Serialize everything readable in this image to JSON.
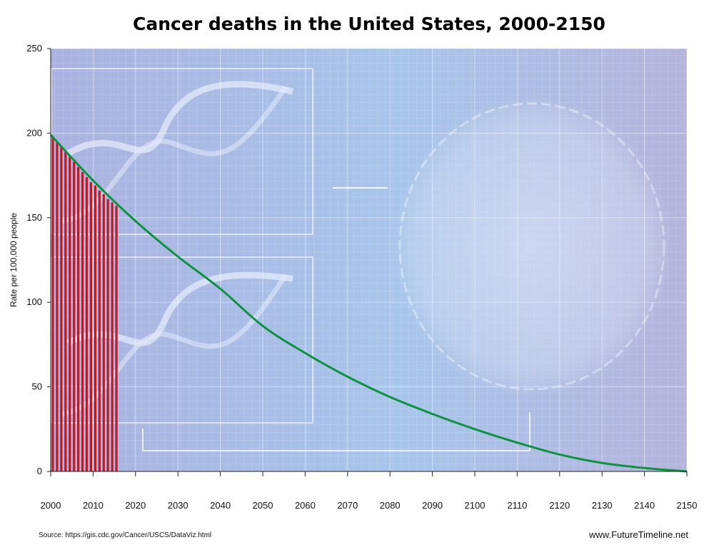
{
  "chart_data": {
    "type": "bar",
    "title": "Cancer deaths in the United States, 2000-2150",
    "xlabel": "",
    "ylabel": "Rate per 100,000 people",
    "xlim": [
      2000,
      2150
    ],
    "ylim": [
      0,
      250
    ],
    "x_ticks": [
      "2000",
      "2010",
      "2020",
      "2030",
      "2040",
      "2050",
      "2060",
      "2070",
      "2080",
      "2090",
      "2100",
      "2110",
      "2120",
      "2130",
      "2140",
      "2150"
    ],
    "y_ticks": [
      "0",
      "50",
      "100",
      "150",
      "200",
      "250"
    ],
    "grid": true,
    "bars": {
      "x": [
        2000,
        2001,
        2002,
        2003,
        2004,
        2005,
        2006,
        2007,
        2008,
        2009,
        2010,
        2011,
        2012,
        2013,
        2014,
        2015
      ],
      "values": [
        198,
        195,
        192,
        189,
        186,
        183,
        180,
        177,
        174,
        171,
        169,
        166,
        164,
        161,
        159,
        157
      ],
      "color": "#b41f2e"
    },
    "trend": {
      "x": [
        2000,
        2010,
        2020,
        2030,
        2040,
        2050,
        2060,
        2070,
        2080,
        2090,
        2100,
        2110,
        2120,
        2130,
        2140,
        2150
      ],
      "values": [
        199,
        172,
        148,
        127,
        108,
        86,
        70,
        56,
        44,
        34,
        25,
        17,
        10,
        5,
        2,
        0
      ],
      "color": "#0e9242"
    }
  },
  "footer": {
    "source": "Source: https://gis.cdc.gov/Cancer/USCS/DataViz.html",
    "site": "www.FutureTimeline.net"
  }
}
